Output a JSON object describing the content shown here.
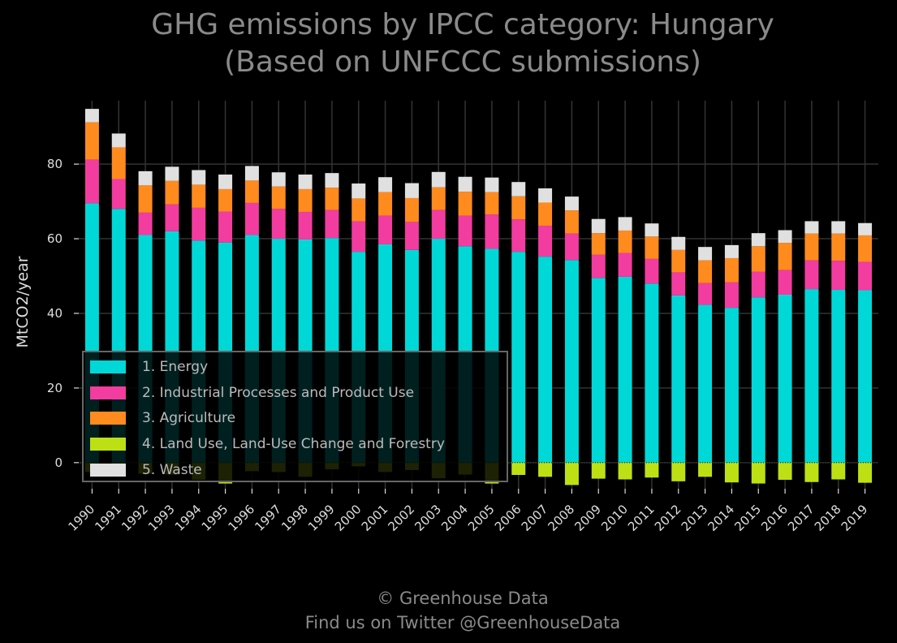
{
  "title": {
    "line1": "GHG emissions by IPCC category: Hungary",
    "line2": "(Based on UNFCCC submissions)"
  },
  "credit": {
    "line1": "© Greenhouse Data",
    "line2": "Find us on Twitter @GreenhouseData"
  },
  "colors": {
    "background": "#000000",
    "grid": "#333333",
    "energy": "#00d8d8",
    "ippu": "#f23ca0",
    "agriculture": "#ff8b1f",
    "lulucf": "#bde015",
    "waste": "#e0e0e0"
  },
  "chart_data": {
    "type": "bar",
    "stacked": true,
    "title": "GHG emissions by IPCC category: Hungary (Based on UNFCCC submissions)",
    "ylabel": "MtCO2/year",
    "xlabel": "",
    "ylim": [
      -7,
      97
    ],
    "yticks": [
      0,
      20,
      40,
      60,
      80
    ],
    "grid": true,
    "legend_position": "lower-left",
    "categories": [
      "1990",
      "1991",
      "1992",
      "1993",
      "1994",
      "1995",
      "1996",
      "1997",
      "1998",
      "1999",
      "2000",
      "2001",
      "2002",
      "2003",
      "2004",
      "2005",
      "2006",
      "2007",
      "2008",
      "2009",
      "2010",
      "2011",
      "2012",
      "2013",
      "2014",
      "2015",
      "2016",
      "2017",
      "2018",
      "2019"
    ],
    "series": [
      {
        "name": "1. Energy",
        "color": "#00d8d8",
        "values": [
          69.5,
          68.0,
          61.0,
          62.0,
          59.5,
          59.0,
          61.0,
          60.0,
          59.8,
          60.2,
          56.5,
          58.5,
          57.0,
          60.0,
          58.0,
          57.3,
          56.5,
          55.2,
          54.3,
          49.5,
          49.8,
          48.0,
          44.8,
          42.3,
          41.5,
          44.3,
          45.0,
          46.5,
          46.3,
          46.2
        ]
      },
      {
        "name": "2. Industrial Processes and Product Use",
        "color": "#f23ca0",
        "values": [
          11.7,
          8.0,
          6.0,
          7.2,
          8.8,
          8.3,
          8.6,
          8.0,
          7.4,
          7.5,
          8.2,
          7.7,
          7.5,
          7.7,
          8.2,
          9.2,
          8.7,
          8.3,
          7.1,
          6.2,
          6.4,
          6.6,
          6.2,
          5.8,
          6.8,
          6.9,
          6.6,
          7.7,
          7.8,
          7.6
        ]
      },
      {
        "name": "3. Agriculture",
        "color": "#ff8b1f",
        "values": [
          10.0,
          8.5,
          7.3,
          6.3,
          6.2,
          6.0,
          6.0,
          6.0,
          6.1,
          6.0,
          6.1,
          6.3,
          6.4,
          6.1,
          6.4,
          6.0,
          6.2,
          6.2,
          6.2,
          5.8,
          6.0,
          6.0,
          6.0,
          6.1,
          6.5,
          6.8,
          7.3,
          7.2,
          7.3,
          7.1
        ]
      },
      {
        "name": "4. Land Use, Land-Use Change and Forestry",
        "color": "#bde015",
        "values": [
          -2.5,
          -2.3,
          -3.0,
          -3.2,
          -4.6,
          -5.6,
          -2.3,
          -2.5,
          -3.8,
          -1.8,
          -1.0,
          -2.5,
          -2.0,
          -4.2,
          -3.2,
          -5.6,
          -3.3,
          -3.8,
          -6.0,
          -4.3,
          -4.5,
          -4.0,
          -5.0,
          -3.8,
          -5.3,
          -5.6,
          -4.6,
          -5.2,
          -4.5,
          -5.4
        ]
      },
      {
        "name": "5. Waste",
        "color": "#e0e0e0",
        "values": [
          3.6,
          3.7,
          3.8,
          3.8,
          3.9,
          3.9,
          3.9,
          3.8,
          3.9,
          3.9,
          4.0,
          4.0,
          4.0,
          4.1,
          4.0,
          3.9,
          3.8,
          3.8,
          3.7,
          3.8,
          3.6,
          3.5,
          3.5,
          3.6,
          3.5,
          3.5,
          3.4,
          3.3,
          3.3,
          3.3
        ]
      }
    ]
  }
}
